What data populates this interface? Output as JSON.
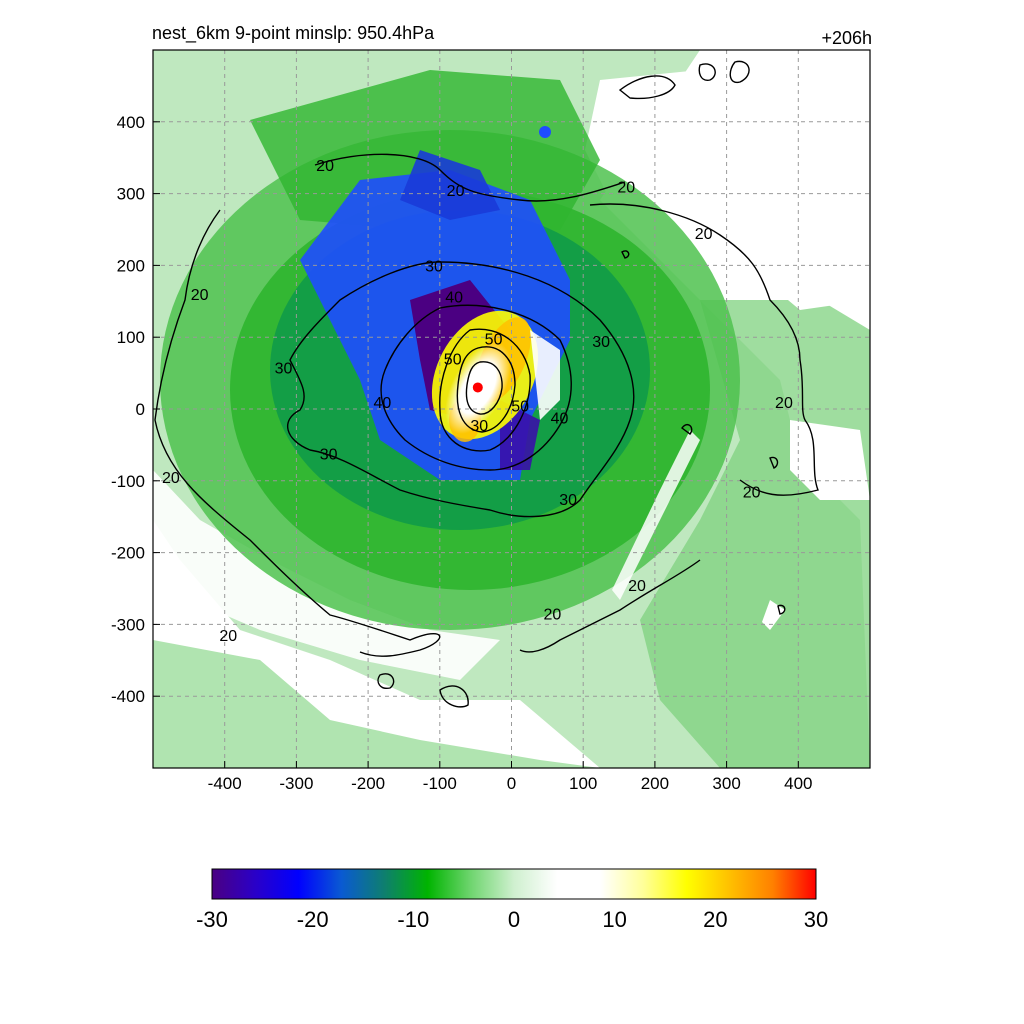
{
  "chart_data": {
    "type": "heatmap",
    "title": "nest_6km  9-point minslp: 950.4hPa",
    "time_label": "+206h",
    "xlim": [
      -500,
      500
    ],
    "ylim": [
      -500,
      500
    ],
    "x_ticks": [
      "-400",
      "-300",
      "-200",
      "-100",
      "0",
      "100",
      "200",
      "300",
      "400"
    ],
    "y_ticks": [
      "400",
      "300",
      "200",
      "100",
      "0",
      "-100",
      "-200",
      "-300",
      "-400"
    ],
    "grid": "dashed",
    "colorbar": {
      "min": -30,
      "max": 30,
      "tick_labels": [
        "-30",
        "-20",
        "-10",
        "0",
        "10",
        "20",
        "30"
      ],
      "colors": [
        "#4b0082",
        "#2a00c8",
        "#0000ff",
        "#0a5ad2",
        "#0e7f6e",
        "#00b400",
        "#6fd56f",
        "#cff0cf",
        "#ffffff",
        "#ffffff",
        "#ffff99",
        "#ffff00",
        "#ffc000",
        "#ff8000",
        "#ff0000"
      ]
    },
    "contour_levels": [
      "20",
      "30",
      "40",
      "50"
    ],
    "contour_labels": [
      {
        "text": "20",
        "x": -260,
        "y": 340
      },
      {
        "text": "20",
        "x": -78,
        "y": 305
      },
      {
        "text": "20",
        "x": 160,
        "y": 310
      },
      {
        "text": "20",
        "x": 268,
        "y": 245
      },
      {
        "text": "20",
        "x": -435,
        "y": 160
      },
      {
        "text": "20",
        "x": 380,
        "y": 10
      },
      {
        "text": "20",
        "x": -475,
        "y": -95
      },
      {
        "text": "20",
        "x": 335,
        "y": -115
      },
      {
        "text": "20",
        "x": -395,
        "y": -315
      },
      {
        "text": "20",
        "x": 57,
        "y": -285
      },
      {
        "text": "20",
        "x": 175,
        "y": -245
      },
      {
        "text": "30",
        "x": -108,
        "y": 200
      },
      {
        "text": "30",
        "x": -318,
        "y": 58
      },
      {
        "text": "30",
        "x": -255,
        "y": -62
      },
      {
        "text": "30",
        "x": 125,
        "y": 95
      },
      {
        "text": "30",
        "x": 79,
        "y": -125
      },
      {
        "text": "40",
        "x": -80,
        "y": 157
      },
      {
        "text": "40",
        "x": -180,
        "y": 10
      },
      {
        "text": "40",
        "x": 67,
        "y": -12
      },
      {
        "text": "50",
        "x": -82,
        "y": 70
      },
      {
        "text": "50",
        "x": -25,
        "y": 98
      },
      {
        "text": "50",
        "x": 12,
        "y": 5
      },
      {
        "text": "30",
        "x": -45,
        "y": -22
      }
    ],
    "center_marker": {
      "x": -47,
      "y": 30,
      "color": "#ff0000"
    }
  }
}
